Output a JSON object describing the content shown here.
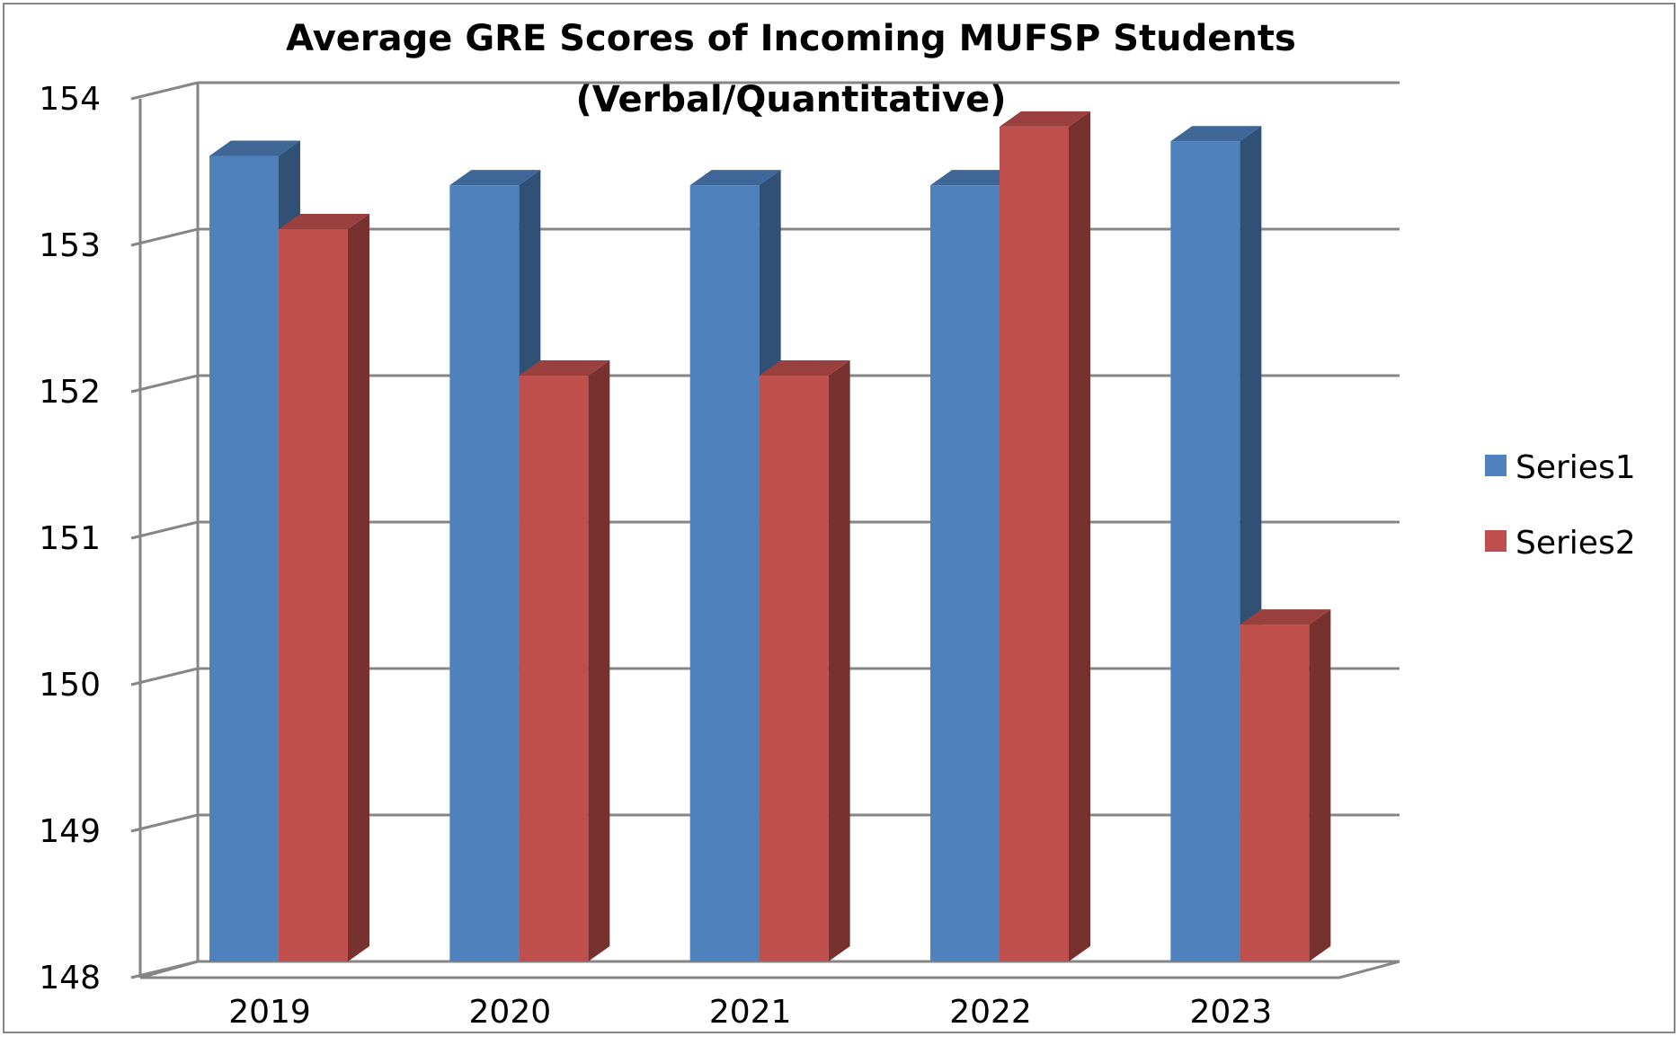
{
  "chart_data": {
    "type": "bar",
    "style": "3d-clustered-column",
    "title": "Average GRE Scores of Incoming MUFSP Students",
    "subtitle": "(Verbal/Quantitative)",
    "categories": [
      "2019",
      "2020",
      "2021",
      "2022",
      "2023"
    ],
    "series": [
      {
        "name": "Series1",
        "color": "#4F81BD",
        "values": [
          153.5,
          153.3,
          153.3,
          153.3,
          153.6
        ]
      },
      {
        "name": "Series2",
        "color": "#C0504D",
        "values": [
          153.0,
          152.0,
          152.0,
          153.7,
          150.3
        ]
      }
    ],
    "ylim": [
      148,
      154
    ],
    "yticks": [
      "148",
      "149",
      "150",
      "151",
      "152",
      "153",
      "154"
    ],
    "xlabel": "",
    "ylabel": "",
    "grid": true,
    "legend_position": "right"
  }
}
